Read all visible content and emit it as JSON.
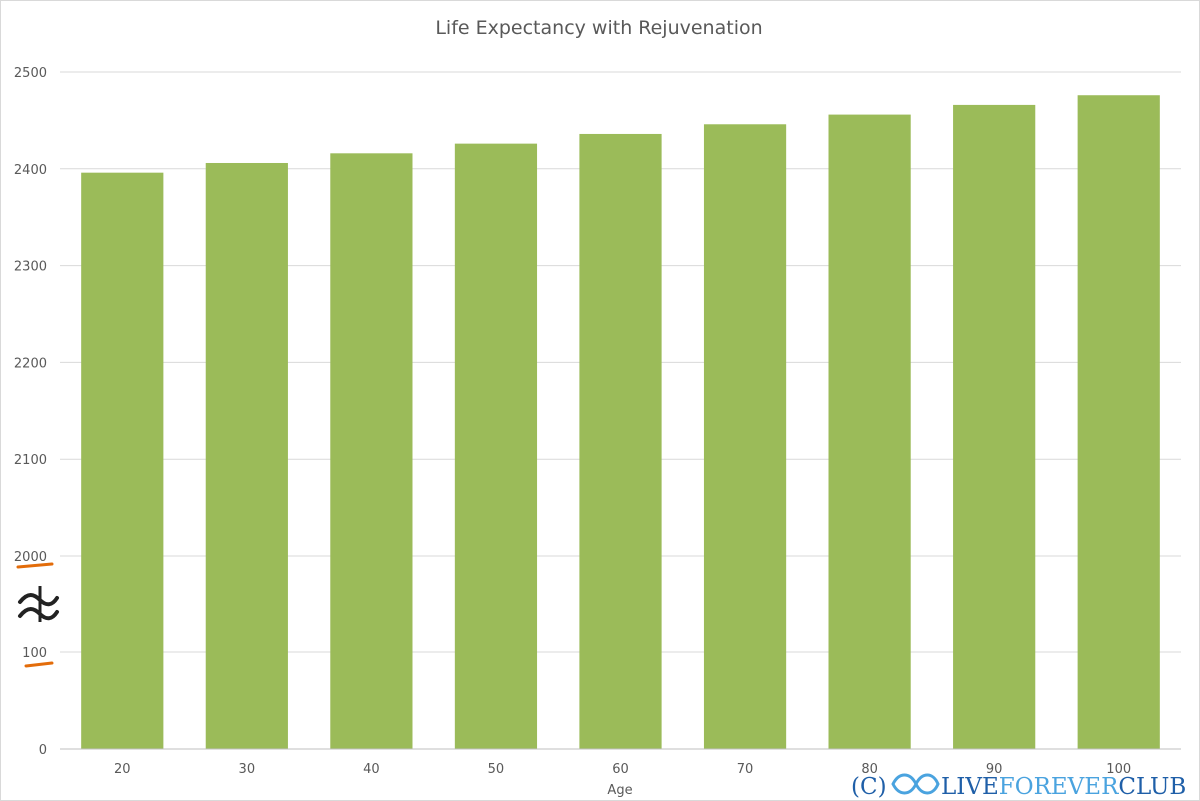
{
  "chart_data": {
    "type": "bar",
    "title": "Life Expectancy with Rejuvenation",
    "xlabel": "Age",
    "ylabel": "",
    "categories": [
      "20",
      "30",
      "40",
      "50",
      "60",
      "70",
      "80",
      "90",
      "100"
    ],
    "values": [
      2396,
      2406,
      2416,
      2426,
      2436,
      2446,
      2456,
      2466,
      2476
    ],
    "y_ticks": [
      "0",
      "100",
      "2000",
      "2100",
      "2200",
      "2300",
      "2400",
      "2500"
    ],
    "y_axis_break": "between 100 and 2000",
    "ylim_upper_segment": [
      2000,
      2500
    ],
    "ylim_lower_segment": [
      0,
      100
    ],
    "grid": true,
    "legend": "none",
    "bar_color": "#9bbb59",
    "break_mark_color": "#e36c0a"
  },
  "watermark": {
    "prefix": "(C)",
    "live": "LIVE",
    "forever": "FOREVER",
    "club": "CLUB",
    "prefix_color": "#1f5fa8",
    "live_color": "#1f5fa8",
    "forever_color": "#4aa3df",
    "club_color": "#1f5fa8"
  }
}
